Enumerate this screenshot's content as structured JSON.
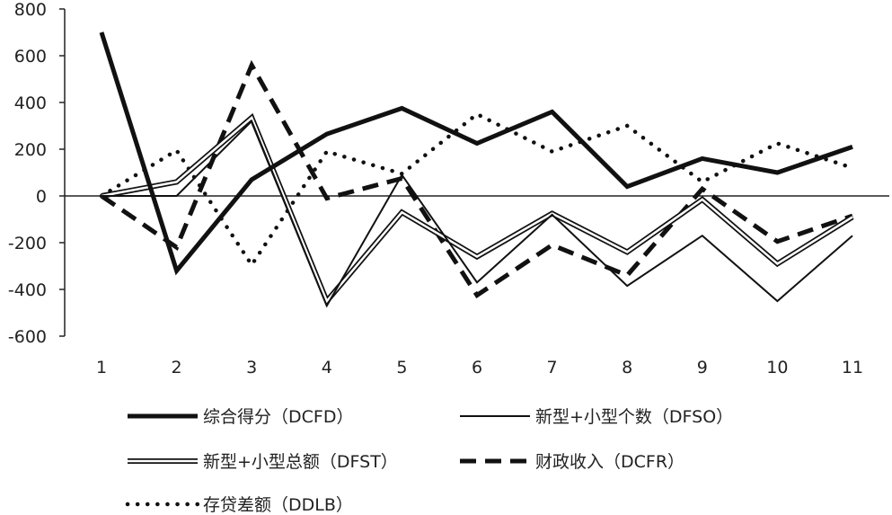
{
  "chart_data": {
    "type": "line",
    "categories": [
      "1",
      "2",
      "3",
      "4",
      "5",
      "6",
      "7",
      "8",
      "9",
      "10",
      "11"
    ],
    "ylim": [
      -600,
      800
    ],
    "yticks": [
      800,
      600,
      400,
      200,
      0,
      -200,
      -400,
      -600
    ],
    "legend_position": "bottom",
    "series": [
      {
        "name": "综合得分（DCFD）",
        "style": "thick-solid",
        "color": "#111111",
        "values": [
          700,
          -320,
          70,
          265,
          375,
          225,
          360,
          40,
          160,
          100,
          210
        ]
      },
      {
        "name": "新型+小型个数（DFSO）",
        "style": "thin-solid",
        "color": "#111111",
        "values": [
          0,
          0,
          320,
          -470,
          90,
          -370,
          -80,
          -385,
          -170,
          -450,
          -170
        ]
      },
      {
        "name": "新型+小型总额（DFST）",
        "style": "double-line",
        "color": "#111111",
        "values": [
          0,
          60,
          335,
          -450,
          -70,
          -260,
          -75,
          -240,
          -15,
          -290,
          -90
        ]
      },
      {
        "name": "财政收入（DCFR）",
        "style": "dashed",
        "color": "#111111",
        "values": [
          0,
          -220,
          560,
          -10,
          75,
          -425,
          -210,
          -340,
          30,
          -195,
          -85
        ]
      },
      {
        "name": "存贷差额（DDLB）",
        "style": "dotted",
        "color": "#111111",
        "values": [
          0,
          195,
          -295,
          190,
          95,
          350,
          190,
          300,
          60,
          225,
          120
        ]
      }
    ]
  }
}
